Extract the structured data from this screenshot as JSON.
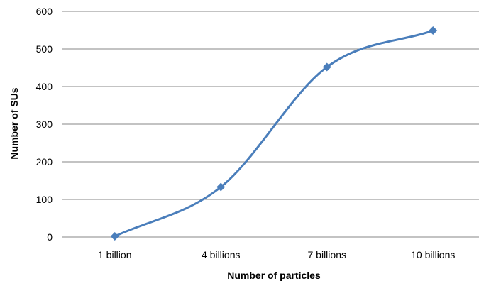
{
  "chart_data": {
    "type": "line",
    "categories": [
      "1 billion",
      "4 billions",
      "7 billions",
      "10 billions"
    ],
    "series": [
      {
        "values": [
          2,
          133,
          452,
          549
        ]
      }
    ],
    "title": "",
    "xlabel": "Number of particles",
    "ylabel": "Number of SUs",
    "ylim": [
      0,
      600
    ],
    "yticks": [
      "0",
      "100",
      "200",
      "300",
      "400",
      "500",
      "600"
    ],
    "grid": "horizontal",
    "legend": "none",
    "smooth": true,
    "marker": "diamond",
    "line_color": "#4a7ebb"
  }
}
